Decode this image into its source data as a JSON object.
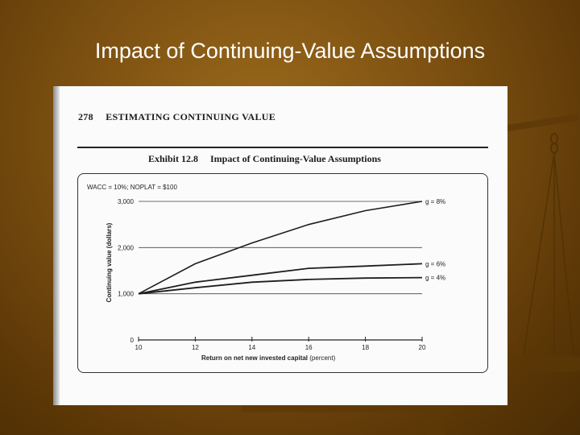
{
  "slide": {
    "title": "Impact of Continuing-Value Assumptions"
  },
  "page": {
    "number": "278",
    "section": "ESTIMATING CONTINUING VALUE"
  },
  "exhibit": {
    "label": "Exhibit 12.8",
    "title": "Impact of Continuing-Value Assumptions",
    "assumptions": "WACC = 10%; NOPLAT = $100"
  },
  "colors": {
    "background": "#7a4e10",
    "scan": "#fbfbfb",
    "ink": "#222222"
  },
  "chart_data": {
    "type": "line",
    "xlabel": "Return on net new invested capital",
    "xlabel_unit": "(percent)",
    "ylabel": "Continuing value (dollars)",
    "xlim": [
      10,
      20
    ],
    "ylim": [
      0,
      3000
    ],
    "x_ticks": [
      10,
      12,
      14,
      16,
      18,
      20
    ],
    "y_ticks": [
      0,
      1000,
      2000,
      3000
    ],
    "y_tick_labels": [
      "0",
      "1,000",
      "2,000",
      "3,000"
    ],
    "grid": "horizontal",
    "x": [
      10,
      12,
      14,
      16,
      18,
      20
    ],
    "series": [
      {
        "name": "g = 8%",
        "values": [
          1000,
          1650,
          2100,
          2500,
          2800,
          3000
        ]
      },
      {
        "name": "g = 6%",
        "values": [
          1000,
          1250,
          1400,
          1550,
          1600,
          1650
        ]
      },
      {
        "name": "g = 4%",
        "values": [
          1000,
          1130,
          1250,
          1310,
          1340,
          1350
        ]
      }
    ]
  }
}
